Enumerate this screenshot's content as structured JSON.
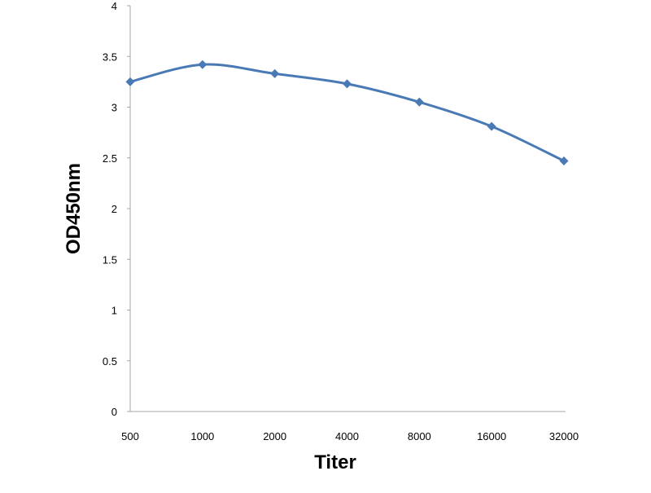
{
  "chart_data": {
    "type": "line",
    "categories": [
      "500",
      "1000",
      "2000",
      "4000",
      "8000",
      "16000",
      "32000"
    ],
    "series": [
      {
        "values": [
          3.25,
          3.42,
          3.33,
          3.23,
          3.05,
          2.81,
          2.47
        ]
      }
    ],
    "xlabel": "Titer",
    "ylabel": "OD450nm",
    "ylim": [
      0,
      4
    ],
    "yticks": [
      "0",
      "0.5",
      "1",
      "1.5",
      "2",
      "2.5",
      "3",
      "3.5",
      "4"
    ],
    "grid": false,
    "legend": "none",
    "marker": "diamond",
    "smooth": true,
    "line_color": "#4a7ab5"
  }
}
